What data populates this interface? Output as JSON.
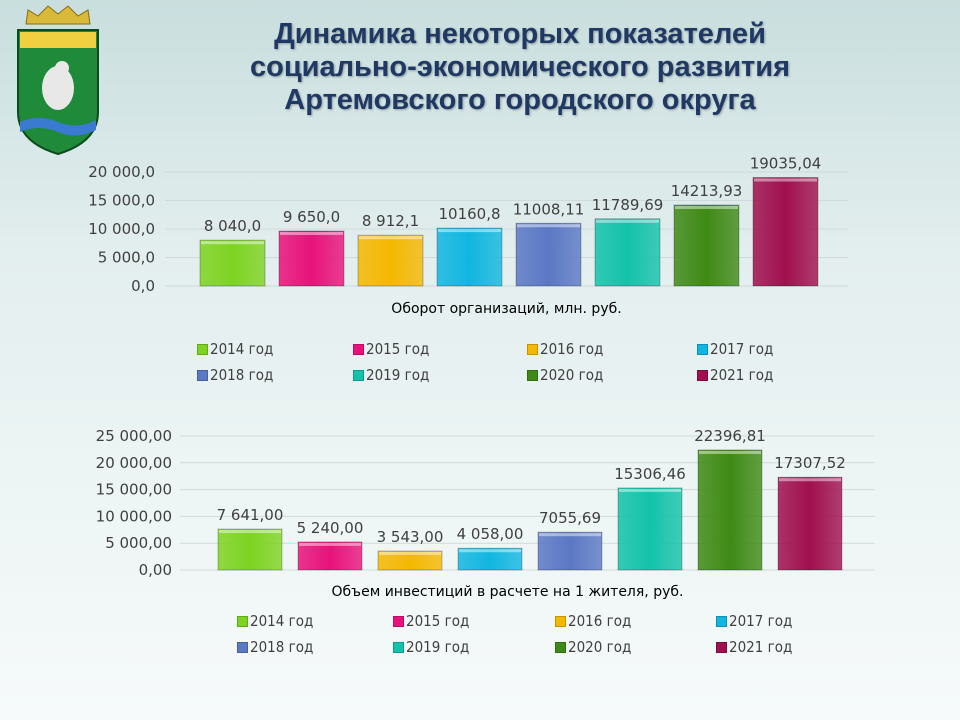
{
  "title": {
    "lines": [
      "Динамика некоторых показателей",
      "социально-экономического развития",
      "Артемовского городского округа"
    ]
  },
  "logo": {
    "name": "coat-of-arms-icon"
  },
  "colors": [
    "#7ed321",
    "#e8127a",
    "#f5b800",
    "#11b6e0",
    "#5b78c4",
    "#13c2aa",
    "#3f8a16",
    "#a0104e"
  ],
  "chart_data": [
    {
      "type": "bar",
      "title": "",
      "xlabel": "Оборот организаций, млн. руб.",
      "ylabel": "",
      "ylim": [
        0,
        20000
      ],
      "yticks": [
        "0,0",
        "5 000,0",
        "10 000,0",
        "15 000,0",
        "20 000,0"
      ],
      "ytick_values": [
        0,
        5000,
        10000,
        15000,
        20000
      ],
      "grid": true,
      "legend": "bottom",
      "categories": [
        "2014 год",
        "2015 год",
        "2016 год",
        "2017 год",
        "2018 год",
        "2019 год",
        "2020 год",
        "2021 год"
      ],
      "values": [
        8040.0,
        9650.0,
        8912.1,
        10160.8,
        11008.11,
        11789.69,
        14213.93,
        19035.04
      ],
      "labels": [
        "8 040,0",
        "9 650,0",
        "8 912,1",
        "10160,8",
        "11008,11",
        "11789,69",
        "14213,93",
        "19035,04"
      ]
    },
    {
      "type": "bar",
      "title": "",
      "xlabel": "Объем инвестиций в расчете  на 1 жителя, руб.",
      "ylabel": "",
      "ylim": [
        0,
        25000
      ],
      "yticks": [
        "0,00",
        "5 000,00",
        "10 000,00",
        "15 000,00",
        "20 000,00",
        "25 000,00"
      ],
      "ytick_values": [
        0,
        5000,
        10000,
        15000,
        20000,
        25000
      ],
      "grid": true,
      "legend": "bottom",
      "categories": [
        "2014 год",
        "2015 год",
        "2016 год",
        "2017 год",
        "2018 год",
        "2019 год",
        "2020 год",
        "2021 год"
      ],
      "values": [
        7641.0,
        5240.0,
        3543.0,
        4058.0,
        7055.69,
        15306.46,
        22396.81,
        17307.52
      ],
      "labels": [
        "7 641,00",
        "5 240,00",
        "3 543,00",
        "4 058,00",
        "7055,69",
        "15306,46",
        "22396,81",
        "17307,52"
      ]
    }
  ]
}
